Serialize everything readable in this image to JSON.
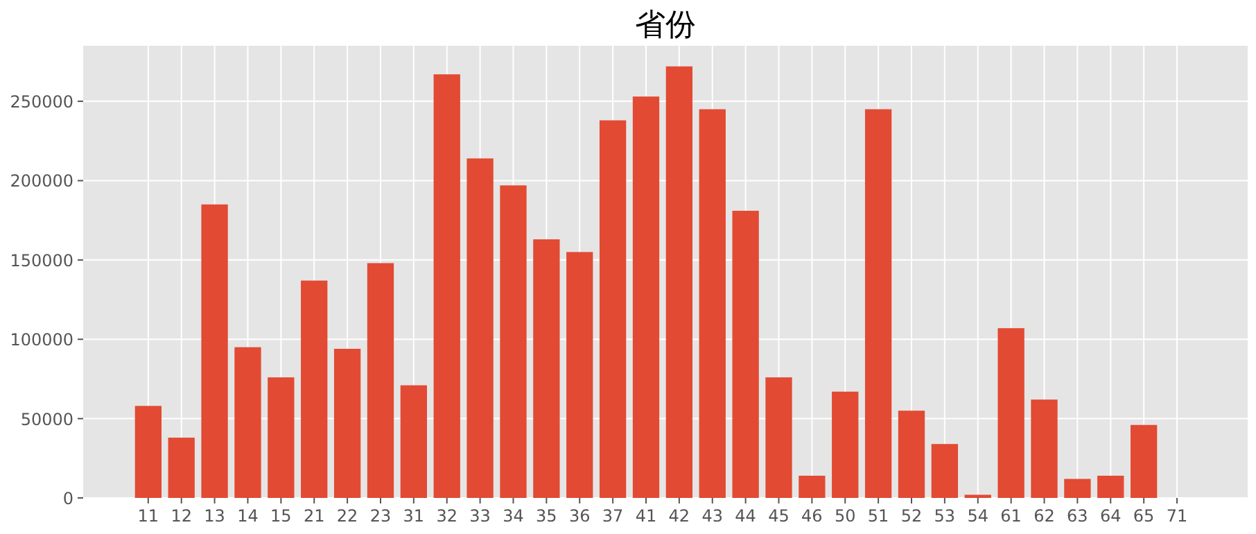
{
  "chart_data": {
    "type": "bar",
    "title": "省份",
    "categories": [
      "11",
      "12",
      "13",
      "14",
      "15",
      "21",
      "22",
      "23",
      "31",
      "32",
      "33",
      "34",
      "35",
      "36",
      "37",
      "41",
      "42",
      "43",
      "44",
      "45",
      "46",
      "50",
      "51",
      "52",
      "53",
      "54",
      "61",
      "62",
      "63",
      "64",
      "65",
      "71"
    ],
    "values": [
      58000,
      38000,
      185000,
      95000,
      76000,
      137000,
      94000,
      148000,
      71000,
      267000,
      214000,
      197000,
      163000,
      155000,
      238000,
      253000,
      272000,
      245000,
      181000,
      76000,
      14000,
      67000,
      245000,
      55000,
      34000,
      2000,
      107000,
      62000,
      12000,
      14000,
      46000,
      0
    ],
    "color": "#e24a33",
    "ylim": [
      0,
      285000
    ],
    "yticks": [
      0,
      50000,
      100000,
      150000,
      200000,
      250000
    ],
    "grid": true
  }
}
